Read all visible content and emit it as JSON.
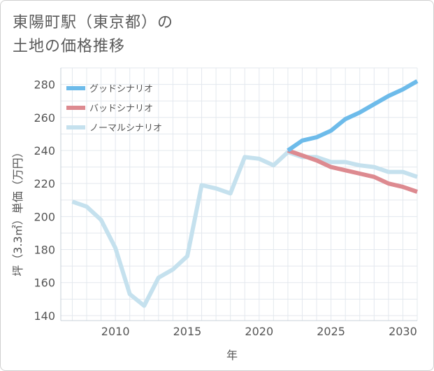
{
  "chart_data": {
    "type": "line",
    "title_line1": "東陽町駅（東京都）の",
    "title_line2": "土地の価格推移",
    "xlabel": "年",
    "ylabel": "坪（3.3㎡）単価（万円）",
    "xlim": [
      2006.2,
      2031
    ],
    "ylim": [
      137,
      290
    ],
    "xticks": [
      2010,
      2015,
      2020,
      2025,
      2030
    ],
    "yticks": [
      140,
      160,
      180,
      200,
      220,
      240,
      260,
      280
    ],
    "grid": true,
    "legend_position": "top-left",
    "series": [
      {
        "name": "グッドシナリオ",
        "color": "#6dbbea",
        "x": [
          2022,
          2023,
          2024,
          2025,
          2026,
          2027,
          2028,
          2029,
          2030,
          2031
        ],
        "y": [
          240,
          246,
          248,
          252,
          259,
          263,
          268,
          273,
          277,
          282
        ]
      },
      {
        "name": "バッドシナリオ",
        "color": "#dd8a90",
        "x": [
          2022,
          2023,
          2024,
          2025,
          2026,
          2027,
          2028,
          2029,
          2030,
          2031
        ],
        "y": [
          240,
          237,
          234,
          230,
          228,
          226,
          224,
          220,
          218,
          215
        ]
      },
      {
        "name": "ノーマルシナリオ",
        "color": "#c5e1ee",
        "x": [
          2007,
          2008,
          2009,
          2010,
          2011,
          2012,
          2013,
          2014,
          2015,
          2016,
          2017,
          2018,
          2019,
          2020,
          2021,
          2022,
          2023,
          2024,
          2025,
          2026,
          2027,
          2028,
          2029,
          2030,
          2031
        ],
        "y": [
          209,
          206,
          198,
          181,
          153,
          146,
          163,
          168,
          176,
          219,
          217,
          214,
          236,
          235,
          231,
          239,
          236,
          236,
          233,
          233,
          231,
          230,
          227,
          227,
          224
        ]
      }
    ]
  }
}
